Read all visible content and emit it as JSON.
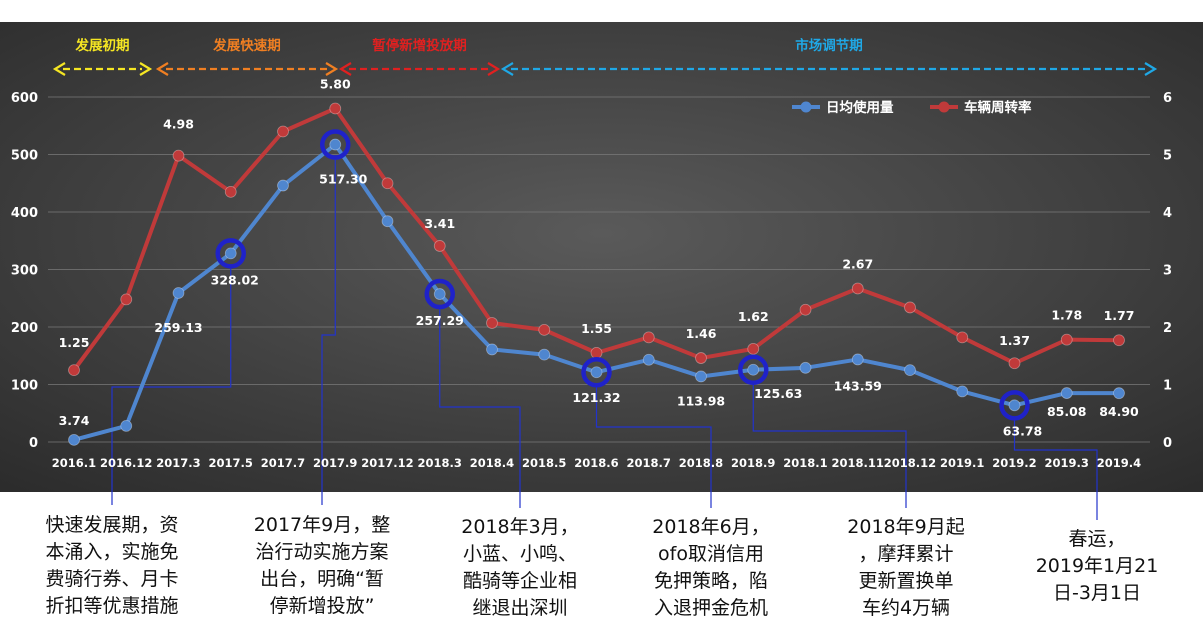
{
  "phases": [
    {
      "label": "发展初期",
      "color": "#f5e623"
    },
    {
      "label": "发展快速期",
      "color": "#f07f22"
    },
    {
      "label": "暂停新增投放期",
      "color": "#e02020"
    },
    {
      "label": "市场调节期",
      "color": "#1fa8e6"
    }
  ],
  "chart_data": {
    "type": "line",
    "categories": [
      "2016.1",
      "2016.12",
      "2017.3",
      "2017.5",
      "2017.7",
      "2017.9",
      "2017.12",
      "2018.3",
      "2018.4",
      "2018.5",
      "2018.6",
      "2018.7",
      "2018.8",
      "2018.9",
      "2018.1",
      "2018.11",
      "2018.12",
      "2019.1",
      "2019.2",
      "2019.3",
      "2019.4"
    ],
    "y_left": {
      "min": 0,
      "max": 600,
      "ticks": [
        "0",
        "100",
        "200",
        "300",
        "400",
        "500",
        "600"
      ]
    },
    "y_right": {
      "min": 0,
      "max": 6,
      "ticks": [
        "0",
        "1",
        "2",
        "3",
        "4",
        "5",
        "6"
      ]
    },
    "series": [
      {
        "name": "日均使用量",
        "axis": "left",
        "color": "#4f86cf",
        "values": [
          3.74,
          28,
          259.13,
          328.02,
          446,
          517.3,
          384,
          257.29,
          161,
          152,
          121.32,
          143,
          113.98,
          125.63,
          129,
          143.59,
          125,
          88,
          63.78,
          85.08,
          84.9
        ],
        "labels": [
          "3.74",
          "",
          "259.13",
          "328.02",
          "",
          "517.30",
          "",
          "257.29",
          "",
          "",
          "121.32",
          "",
          "113.98",
          "125.63",
          "",
          "143.59",
          "",
          "",
          "63.78",
          "85.08",
          "84.90"
        ]
      },
      {
        "name": "车辆周转率",
        "axis": "right",
        "color": "#c03a3a",
        "values": [
          1.25,
          2.48,
          4.98,
          4.35,
          5.4,
          5.8,
          4.5,
          3.41,
          2.07,
          1.95,
          1.55,
          1.82,
          1.46,
          1.62,
          2.3,
          2.67,
          2.34,
          1.82,
          1.37,
          1.78,
          1.77
        ],
        "labels": [
          "1.25",
          "",
          "4.98",
          "",
          "",
          "5.80",
          "",
          "3.41",
          "",
          "",
          "1.55",
          "",
          "1.46",
          "1.62",
          "",
          "2.67",
          "",
          "",
          "1.37",
          "1.78",
          "1.77"
        ]
      }
    ],
    "highlight_indices": [
      3,
      5,
      7,
      10,
      13,
      18
    ],
    "grid": true,
    "legend": "top-right"
  },
  "annotations": [
    {
      "text": "快速发展期，资\n本涌入，实施免\n费骑行券、月卡\n折扣等优惠措施",
      "point": 3
    },
    {
      "text": "2017年9月，整\n治行动实施方案\n出台，明确“暂\n停新增投放”",
      "point": 5
    },
    {
      "text": "2018年3月，\n小蓝、小鸣、\n酷骑等企业相\n继退出深圳",
      "point": 7
    },
    {
      "text": "2018年6月，\nofo取消信用\n免押策略，陷\n入退押金危机",
      "point": 10
    },
    {
      "text": "2018年9月起\n，摩拜累计\n更新置换单\n车约4万辆",
      "point": 13
    },
    {
      "text": "春运，\n2019年1月21\n日-3月1日",
      "point": 18
    }
  ]
}
